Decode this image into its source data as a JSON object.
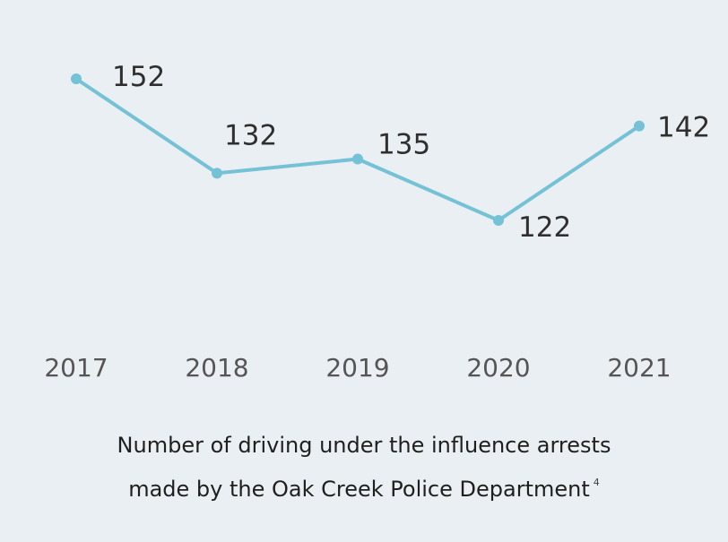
{
  "chart_data": {
    "type": "line",
    "categories": [
      "2017",
      "2018",
      "2019",
      "2020",
      "2021"
    ],
    "series": [
      {
        "values": [
          152,
          132,
          135,
          122,
          142
        ]
      }
    ],
    "data_labels": [
      "152",
      "132",
      "135",
      "122",
      "142"
    ],
    "title": "",
    "xlabel": "",
    "ylabel": "",
    "grid": false,
    "line_color": "#75c2d6",
    "caption_line1": "Number of driving under the influence arrests",
    "caption_line2": "made by the Oak Creek Police Department",
    "footnote": "4"
  }
}
